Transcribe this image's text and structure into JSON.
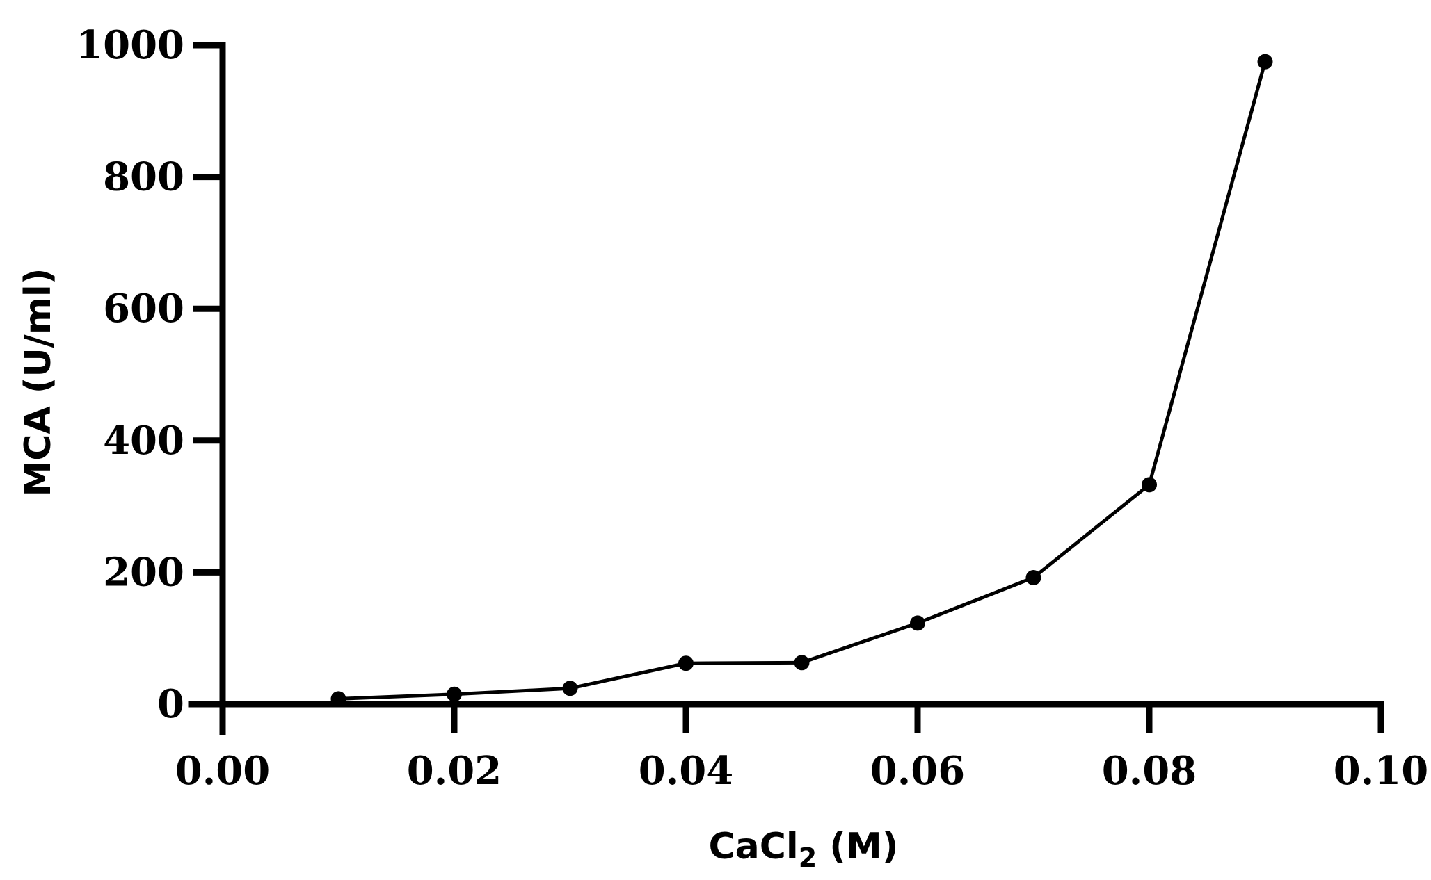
{
  "chart_data": {
    "type": "line",
    "xlabel": {
      "main": "CaCl",
      "subscript": "2",
      "suffix": " (M)"
    },
    "ylabel": "MCA (U/ml)",
    "xlim": [
      0,
      0.1
    ],
    "ylim": [
      0,
      1000
    ],
    "xticks": [
      0.0,
      0.02,
      0.04,
      0.06,
      0.08,
      0.1
    ],
    "xtick_labels": [
      "0.00",
      "0.02",
      "0.04",
      "0.06",
      "0.08",
      "0.10"
    ],
    "yticks": [
      0,
      200,
      400,
      600,
      800,
      1000
    ],
    "ytick_labels": [
      "0",
      "200",
      "400",
      "600",
      "800",
      "1000"
    ],
    "grid": false,
    "series": [
      {
        "x": [
          0.01,
          0.02,
          0.03,
          0.04,
          0.05,
          0.06,
          0.07,
          0.08,
          0.09
        ],
        "values": [
          8,
          15,
          24,
          62,
          63,
          123,
          192,
          333,
          975
        ],
        "color": "#000000",
        "marker": "circle"
      }
    ]
  }
}
